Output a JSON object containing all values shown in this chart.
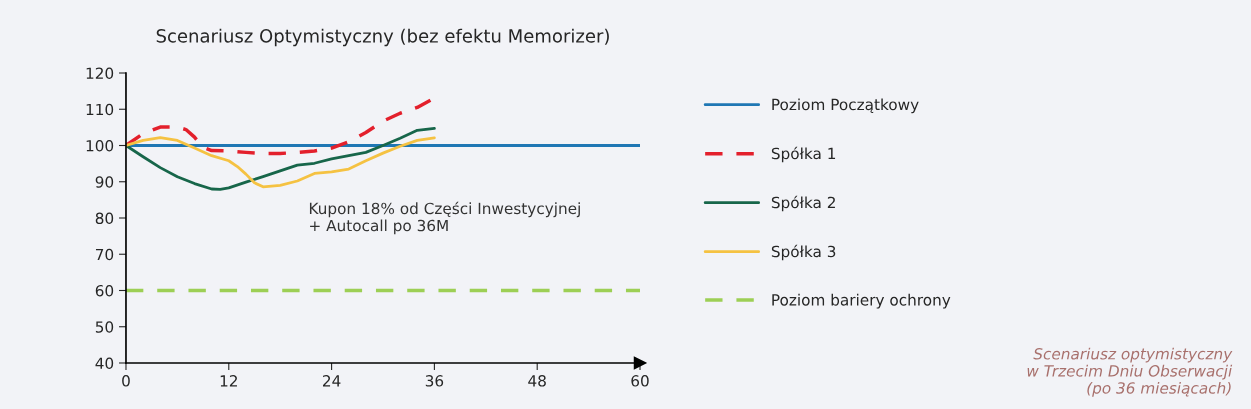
{
  "chart_data": {
    "type": "line",
    "title": "Scenariusz Optymistyczny (bez efektu Memorizer)",
    "xlim": [
      0,
      60
    ],
    "xticks": [
      0,
      12,
      24,
      36,
      48,
      60
    ],
    "ylim": [
      40,
      120
    ],
    "yticks": [
      40,
      50,
      60,
      70,
      80,
      90,
      100,
      110,
      120
    ],
    "grid": false,
    "legend": "right",
    "marker": "none",
    "series": [
      {
        "name": "Poziom Początkowy",
        "color": "#1f77b4",
        "line_style": "solid",
        "x": [
          0,
          60
        ],
        "values": [
          100,
          100
        ]
      },
      {
        "name": "Spółka 1",
        "color": "#e3202c",
        "line_style": "dashed",
        "x": [
          0,
          2,
          4,
          6,
          7,
          8,
          9,
          10,
          12,
          14,
          16,
          18,
          20,
          22,
          24,
          26,
          28,
          30,
          32,
          34,
          36
        ],
        "values": [
          100,
          103.3,
          105.1,
          105.1,
          104.4,
          102.3,
          99.5,
          98.6,
          98.5,
          98.1,
          97.8,
          97.8,
          98.1,
          98.5,
          99.3,
          101,
          103.6,
          106.7,
          108.9,
          110.5,
          113.1
        ]
      },
      {
        "name": "Spółka 2",
        "color": "#17664a",
        "line_style": "solid",
        "x": [
          0,
          2,
          4,
          6,
          8,
          10,
          11,
          12,
          14,
          16,
          18,
          20,
          22,
          24,
          26,
          28,
          30,
          32,
          34,
          36
        ],
        "values": [
          100,
          96.9,
          93.9,
          91.4,
          89.5,
          88,
          87.9,
          88.3,
          89.9,
          91.4,
          93,
          94.6,
          95.1,
          96.3,
          97.2,
          98.1,
          100,
          102,
          104.2,
          104.7
        ]
      },
      {
        "name": "Spółka 3",
        "color": "#f5c242",
        "line_style": "solid",
        "x": [
          0,
          2,
          4,
          6,
          8,
          10,
          12,
          13,
          14,
          15,
          16,
          18,
          20,
          22,
          24,
          26,
          28,
          30,
          32,
          34,
          36
        ],
        "values": [
          100,
          101.4,
          102.2,
          101.4,
          99.3,
          97.2,
          95.8,
          94.2,
          92.1,
          89.7,
          88.6,
          89,
          90.2,
          92.3,
          92.7,
          93.5,
          95.8,
          97.9,
          99.8,
          101.4,
          102.1
        ]
      },
      {
        "name": "Poziom bariery ochrony",
        "color": "#9dcf55",
        "line_style": "dashed",
        "x": [
          0,
          60
        ],
        "values": [
          60,
          60
        ]
      }
    ],
    "annotations": [
      "Kupon 18% od Części Inwestycyjnej\n+ Autocall po 36M",
      "Scenariusz optymistyczny\nw Trzecim Dniu Obserwacji\n(po 36 miesiącach)"
    ]
  }
}
